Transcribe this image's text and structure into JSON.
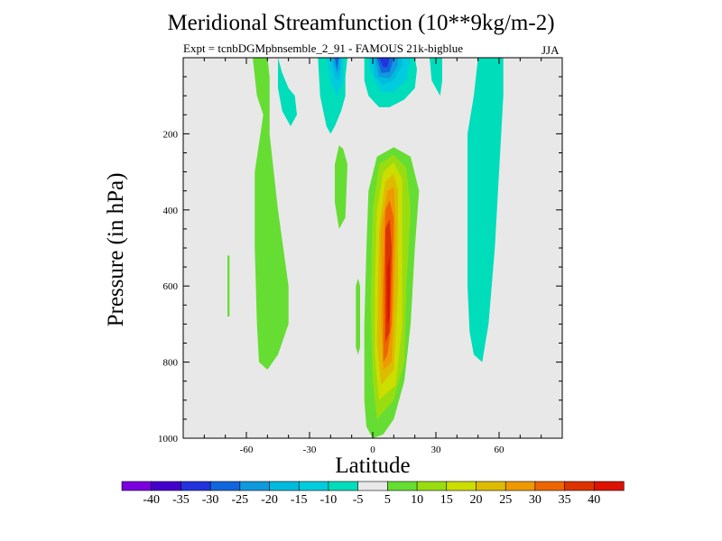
{
  "chart_data": {
    "type": "heatmap",
    "title": "Meridional Streamfunction (10**9kg/m-2)",
    "subtitle": "Expt = tcnbDGMpbnsemble_2_91 - FAMOUS 21k-bigblue",
    "season": "JJA",
    "xlabel": "Latitude",
    "ylabel": "Pressure (in hPa)",
    "xlim": [
      -90,
      90
    ],
    "ylim": [
      1000,
      0
    ],
    "x_ticks": [
      -60,
      -30,
      0,
      30,
      60
    ],
    "x_tick_labels": [
      "-60",
      "-30",
      "0",
      "30",
      "60"
    ],
    "y_ticks": [
      200,
      400,
      600,
      800,
      1000
    ],
    "y_tick_labels": [
      "200",
      "400",
      "600",
      "800",
      "1000"
    ],
    "colorbar": {
      "levels": [
        "-40",
        "-35",
        "-30",
        "-25",
        "-20",
        "-15",
        "-10",
        "-5",
        "5",
        "10",
        "15",
        "20",
        "25",
        "30",
        "35",
        "40"
      ],
      "colors": [
        "#7a00e0",
        "#4400cc",
        "#2233dd",
        "#1166dd",
        "#1199dd",
        "#00bbdd",
        "#00ccdd",
        "#00ddbb",
        "#e8e8e8",
        "#66dd33",
        "#99dd11",
        "#ccdd00",
        "#ddbb00",
        "#ee9900",
        "#ee6600",
        "#dd3300",
        "#dd1100"
      ]
    },
    "background_color": "#e8e8e8",
    "contours": [
      {
        "value": 5,
        "color": "#66dd33",
        "points": [
          [
            0,
            1000
          ],
          [
            -3,
            970
          ],
          [
            -4,
            900
          ],
          [
            -4,
            700
          ],
          [
            -3,
            500
          ],
          [
            -2,
            350
          ],
          [
            2,
            260
          ],
          [
            10,
            235
          ],
          [
            18,
            260
          ],
          [
            22,
            350
          ],
          [
            20,
            500
          ],
          [
            18,
            700
          ],
          [
            15,
            850
          ],
          [
            10,
            950
          ],
          [
            5,
            990
          ]
        ]
      },
      {
        "value": 10,
        "color": "#99dd11",
        "points": [
          [
            2,
            950
          ],
          [
            0,
            850
          ],
          [
            -1,
            650
          ],
          [
            0,
            400
          ],
          [
            3,
            280
          ],
          [
            10,
            255
          ],
          [
            16,
            290
          ],
          [
            18,
            400
          ],
          [
            16,
            600
          ],
          [
            15,
            800
          ],
          [
            10,
            900
          ]
        ]
      },
      {
        "value": 15,
        "color": "#ccdd00",
        "points": [
          [
            3,
            900
          ],
          [
            1,
            780
          ],
          [
            1,
            600
          ],
          [
            2,
            400
          ],
          [
            5,
            300
          ],
          [
            10,
            275
          ],
          [
            14,
            320
          ],
          [
            14,
            500
          ],
          [
            14,
            700
          ],
          [
            11,
            860
          ]
        ]
      },
      {
        "value": 20,
        "color": "#ddbb00",
        "points": [
          [
            4,
            860
          ],
          [
            2,
            750
          ],
          [
            3,
            450
          ],
          [
            6,
            325
          ],
          [
            10,
            305
          ],
          [
            12,
            350
          ],
          [
            12,
            600
          ],
          [
            10,
            820
          ]
        ]
      },
      {
        "value": 25,
        "color": "#ee9900",
        "points": [
          [
            5,
            820
          ],
          [
            4,
            700
          ],
          [
            4,
            450
          ],
          [
            7,
            350
          ],
          [
            10,
            340
          ],
          [
            11,
            450
          ],
          [
            10,
            650
          ],
          [
            9,
            800
          ]
        ]
      },
      {
        "value": 30,
        "color": "#ee6600",
        "points": [
          [
            5,
            800
          ],
          [
            5,
            600
          ],
          [
            6,
            400
          ],
          [
            8,
            375
          ],
          [
            10,
            420
          ],
          [
            9,
            700
          ],
          [
            7,
            780
          ]
        ]
      },
      {
        "value": 35,
        "color": "#dd3300",
        "points": [
          [
            6,
            750
          ],
          [
            6,
            450
          ],
          [
            8,
            425
          ],
          [
            9,
            500
          ],
          [
            8,
            720
          ]
        ]
      },
      {
        "value": 40,
        "color": "#dd1100",
        "points": [
          [
            7,
            700
          ],
          [
            7,
            550
          ],
          [
            8,
            520
          ],
          [
            8,
            680
          ]
        ]
      },
      {
        "value": 5,
        "color": "#66dd33",
        "points": [
          [
            -57,
            0
          ],
          [
            -55,
            100
          ],
          [
            -52,
            150
          ],
          [
            -56,
            300
          ],
          [
            -56,
            500
          ],
          [
            -55,
            700
          ],
          [
            -54,
            800
          ],
          [
            -50,
            820
          ],
          [
            -45,
            780
          ],
          [
            -40,
            700
          ],
          [
            -40,
            600
          ],
          [
            -45,
            400
          ],
          [
            -49,
            200
          ],
          [
            -49,
            50
          ],
          [
            -50,
            0
          ]
        ]
      },
      {
        "value": 5,
        "color": "#66dd33",
        "points": [
          [
            -69,
            520
          ],
          [
            -68,
            520
          ],
          [
            -68,
            680
          ],
          [
            -69,
            680
          ]
        ]
      },
      {
        "value": 5,
        "color": "#66dd33",
        "points": [
          [
            -18,
            280
          ],
          [
            -16,
            230
          ],
          [
            -14,
            240
          ],
          [
            -12,
            280
          ],
          [
            -13,
            420
          ],
          [
            -16,
            450
          ],
          [
            -18,
            380
          ]
        ]
      },
      {
        "value": 5,
        "color": "#66dd33",
        "points": [
          [
            -8,
            600
          ],
          [
            -7,
            580
          ],
          [
            -6,
            600
          ],
          [
            -6,
            760
          ],
          [
            -7,
            780
          ],
          [
            -8,
            760
          ]
        ]
      },
      {
        "value": -5,
        "color": "#00ddbb",
        "points": [
          [
            -45,
            0
          ],
          [
            -43,
            40
          ],
          [
            -40,
            80
          ],
          [
            -37,
            100
          ],
          [
            -36,
            150
          ],
          [
            -39,
            180
          ],
          [
            -43,
            140
          ],
          [
            -45,
            80
          ]
        ]
      },
      {
        "value": -5,
        "color": "#00ddbb",
        "points": [
          [
            -26,
            0
          ],
          [
            -25,
            100
          ],
          [
            -22,
            180
          ],
          [
            -20,
            200
          ],
          [
            -18,
            180
          ],
          [
            -15,
            140
          ],
          [
            -13,
            100
          ],
          [
            -13,
            50
          ],
          [
            -12,
            0
          ]
        ]
      },
      {
        "value": -5,
        "color": "#00ddbb",
        "points": [
          [
            -4,
            0
          ],
          [
            -4,
            60
          ],
          [
            -2,
            100
          ],
          [
            3,
            130
          ],
          [
            8,
            130
          ],
          [
            15,
            110
          ],
          [
            20,
            80
          ],
          [
            21,
            30
          ],
          [
            20,
            0
          ]
        ]
      },
      {
        "value": -5,
        "color": "#00ddbb",
        "points": [
          [
            27,
            0
          ],
          [
            28,
            60
          ],
          [
            32,
            100
          ],
          [
            33,
            60
          ],
          [
            33,
            0
          ]
        ]
      },
      {
        "value": -5,
        "color": "#00ddbb",
        "points": [
          [
            50,
            0
          ],
          [
            48,
            100
          ],
          [
            45,
            200
          ],
          [
            45,
            400
          ],
          [
            45,
            600
          ],
          [
            46,
            720
          ],
          [
            48,
            780
          ],
          [
            52,
            800
          ],
          [
            55,
            700
          ],
          [
            58,
            500
          ],
          [
            60,
            300
          ],
          [
            62,
            100
          ],
          [
            62,
            0
          ]
        ]
      },
      {
        "value": -10,
        "color": "#00ccdd",
        "points": [
          [
            -22,
            0
          ],
          [
            -20,
            60
          ],
          [
            -17,
            100
          ],
          [
            -14,
            60
          ],
          [
            -14,
            0
          ]
        ]
      },
      {
        "value": -10,
        "color": "#00ccdd",
        "points": [
          [
            -2,
            0
          ],
          [
            -1,
            40
          ],
          [
            4,
            90
          ],
          [
            10,
            90
          ],
          [
            16,
            60
          ],
          [
            18,
            0
          ]
        ]
      },
      {
        "value": -15,
        "color": "#00bbdd",
        "points": [
          [
            -20,
            0
          ],
          [
            -18,
            50
          ],
          [
            -16,
            60
          ],
          [
            -15,
            30
          ],
          [
            -15,
            0
          ]
        ]
      },
      {
        "value": -15,
        "color": "#00bbdd",
        "points": [
          [
            0,
            0
          ],
          [
            1,
            50
          ],
          [
            5,
            70
          ],
          [
            10,
            60
          ],
          [
            14,
            20
          ],
          [
            14,
            0
          ]
        ]
      },
      {
        "value": -20,
        "color": "#1199dd",
        "points": [
          [
            -19,
            0
          ],
          [
            -17,
            40
          ],
          [
            -16,
            30
          ],
          [
            -16,
            0
          ]
        ]
      },
      {
        "value": -20,
        "color": "#1199dd",
        "points": [
          [
            1,
            0
          ],
          [
            3,
            50
          ],
          [
            8,
            55
          ],
          [
            12,
            20
          ],
          [
            12,
            0
          ]
        ]
      },
      {
        "value": -25,
        "color": "#1166dd",
        "points": [
          [
            -18,
            0
          ],
          [
            -17,
            30
          ],
          [
            -16,
            0
          ]
        ]
      },
      {
        "value": -25,
        "color": "#1166dd",
        "points": [
          [
            2,
            0
          ],
          [
            4,
            40
          ],
          [
            8,
            38
          ],
          [
            10,
            0
          ]
        ]
      },
      {
        "value": -30,
        "color": "#2233dd",
        "points": [
          [
            3,
            0
          ],
          [
            5,
            25
          ],
          [
            7,
            25
          ],
          [
            8,
            0
          ]
        ]
      }
    ]
  }
}
